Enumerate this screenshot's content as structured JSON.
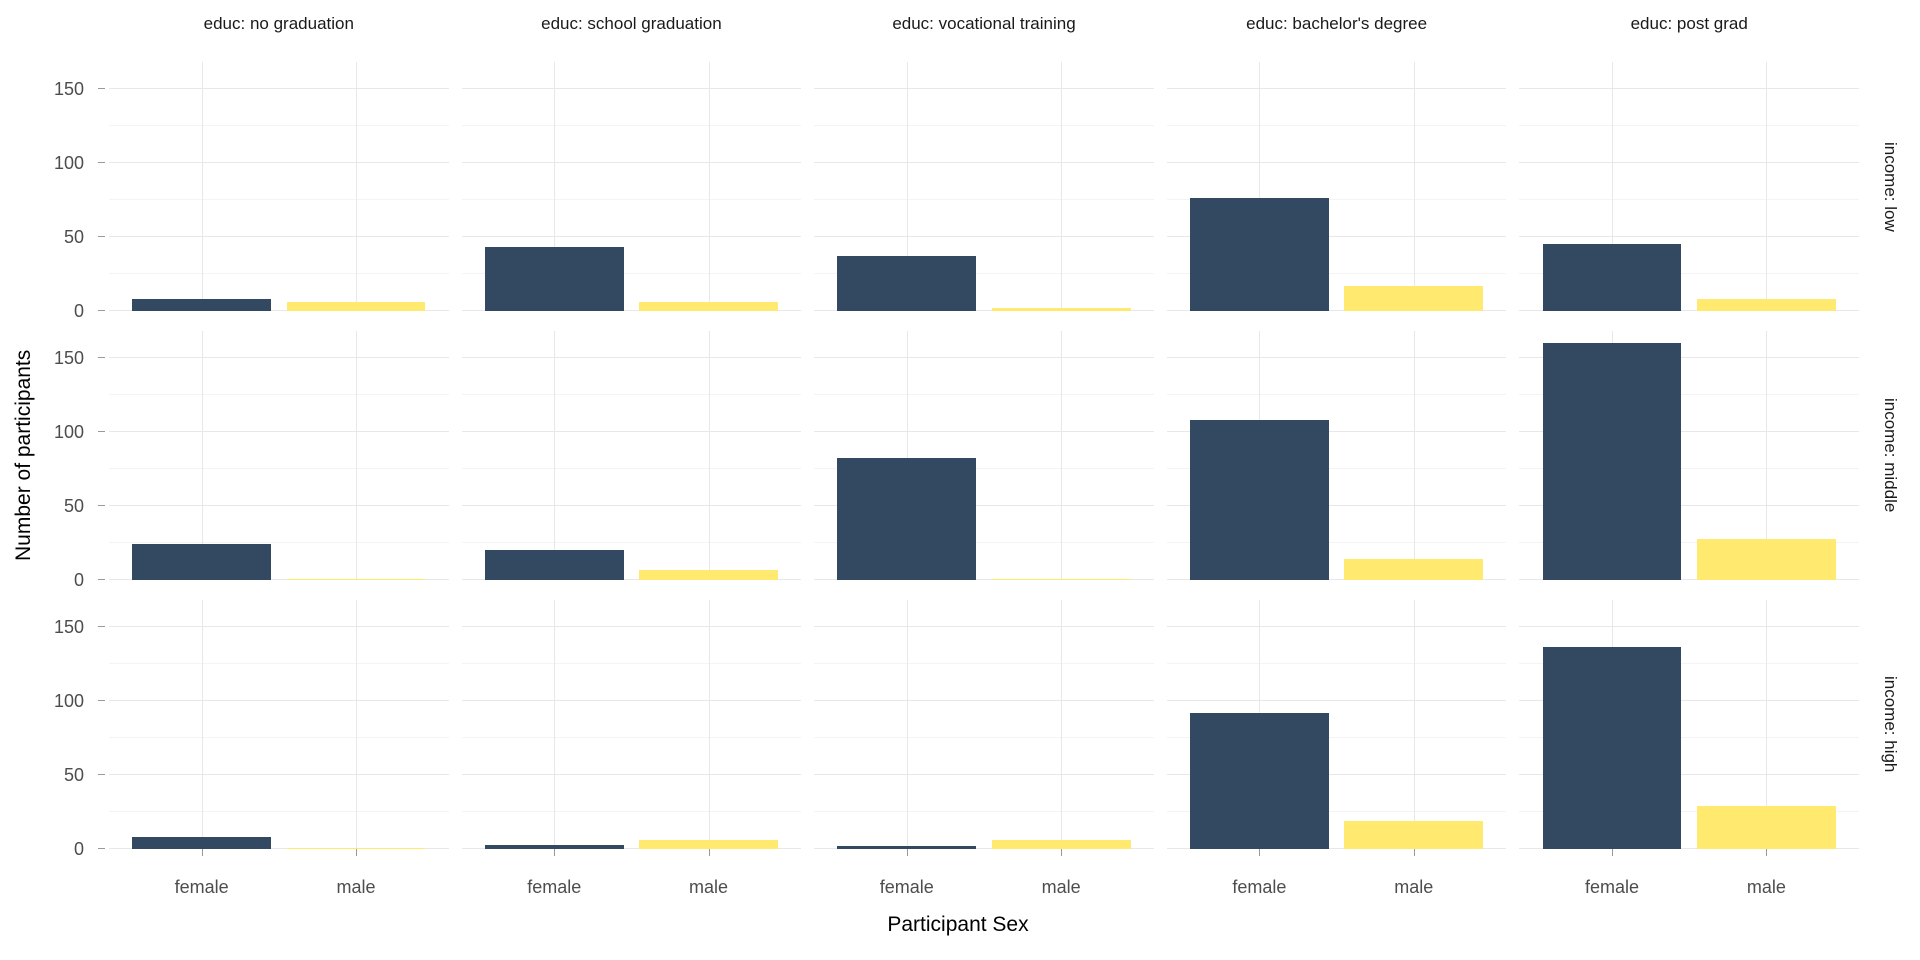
{
  "chart_data": {
    "type": "bar",
    "title": "",
    "xlabel": "Participant Sex",
    "ylabel": "Number of participants",
    "categories": [
      "female",
      "male"
    ],
    "ylim": [
      0,
      168
    ],
    "yticks": [
      0,
      50,
      100,
      150
    ],
    "yticks_minor": [
      25,
      75,
      125
    ],
    "grid": "on",
    "legend_position": "none",
    "bar_colors": {
      "female": "#334962",
      "male": "#FFE96E"
    },
    "col_facets": [
      "educ: no graduation",
      "educ: school graduation",
      "educ: vocational training",
      "educ: bachelor's degree",
      "educ: post grad"
    ],
    "row_facets": [
      "income: low",
      "income: middle",
      "income: high"
    ],
    "series": [
      {
        "facet_row": "income: low",
        "values": [
          {
            "female": 8,
            "male": 6
          },
          {
            "female": 43,
            "male": 6
          },
          {
            "female": 37,
            "male": 2
          },
          {
            "female": 76,
            "male": 17
          },
          {
            "female": 45,
            "male": 8
          }
        ]
      },
      {
        "facet_row": "income: middle",
        "values": [
          {
            "female": 24,
            "male": 1
          },
          {
            "female": 20,
            "male": 7
          },
          {
            "female": 82,
            "male": 1
          },
          {
            "female": 108,
            "male": 14
          },
          {
            "female": 160,
            "male": 28
          }
        ]
      },
      {
        "facet_row": "income: high",
        "values": [
          {
            "female": 8,
            "male": 1
          },
          {
            "female": 3,
            "male": 6
          },
          {
            "female": 2,
            "male": 6
          },
          {
            "female": 92,
            "male": 19
          },
          {
            "female": 136,
            "male": 29
          }
        ]
      }
    ]
  },
  "colors": {
    "background": "#ffffff",
    "grid_major": "#e8e8e8",
    "grid_minor": "#f4f4f4",
    "axis_tick": "#999999",
    "tick_label": "#4d4d4d",
    "strip_text": "#1a1a1a",
    "axis_title": "#000000",
    "bar_female": "#334962",
    "bar_male": "#FFE96E"
  }
}
